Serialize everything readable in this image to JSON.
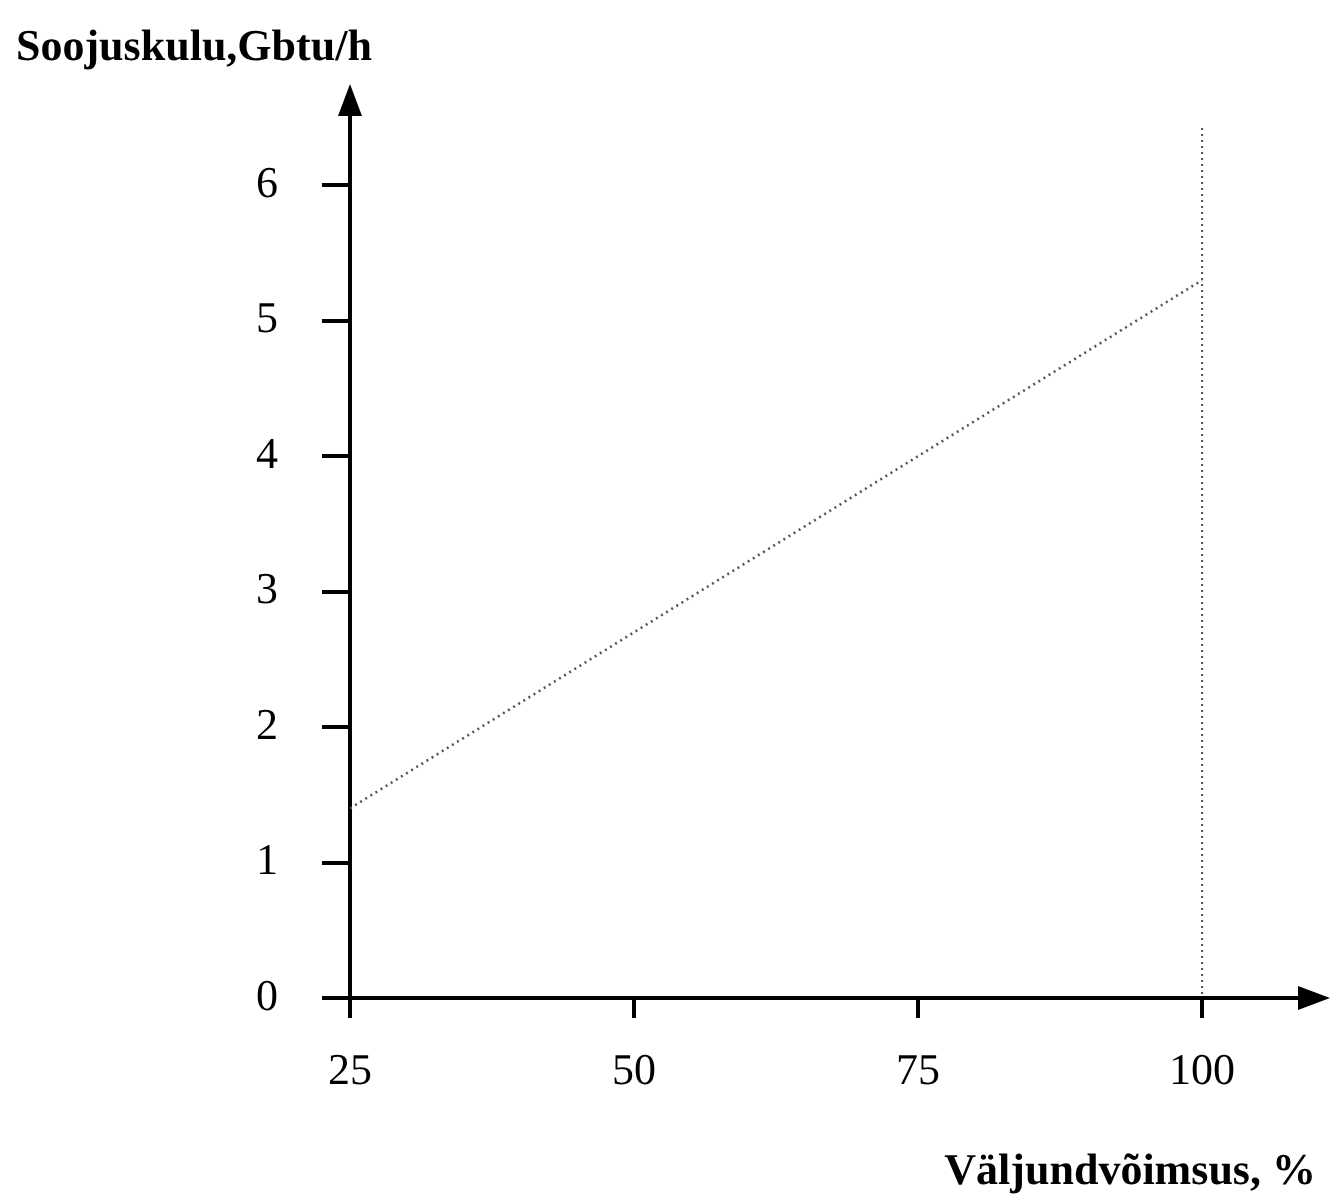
{
  "chart_data": {
    "type": "line",
    "xlabel": "Väljundvõimsus, %",
    "ylabel": "Soojuskulu,Gbtu/h",
    "x": [
      25,
      100
    ],
    "series": [
      {
        "color": "#555555",
        "values": [
          1.4,
          5.3
        ]
      }
    ],
    "xlim": [
      25,
      109.5
    ],
    "ylim": [
      0,
      6.6
    ],
    "xticks": [
      25,
      50,
      75,
      100
    ],
    "yticks": [
      0,
      1,
      2,
      3,
      4,
      5,
      6
    ],
    "ref_lines": [
      {
        "axis": "x",
        "value": 100,
        "color": "#555555",
        "line_style": "dotted"
      }
    ],
    "grid": false,
    "legend": false,
    "marker": "none",
    "line_style": "dotted"
  }
}
